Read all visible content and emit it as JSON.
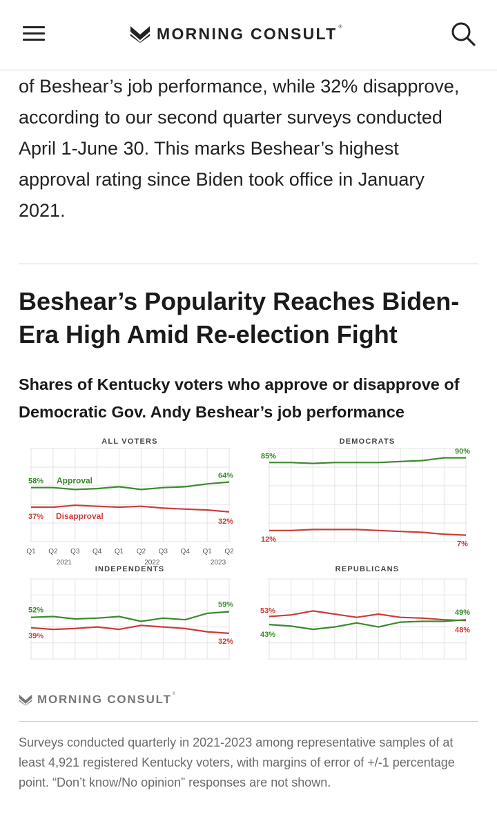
{
  "header": {
    "menu_icon": "hamburger-icon",
    "brand": "MORNING CONSULT",
    "brand_mark": "®",
    "search_icon": "search-icon"
  },
  "article": {
    "intro": "of Beshear’s job performance, while 32% disapprove, according to our second quarter surveys conducted April 1-June 30. This marks Beshear’s highest approval rating since Biden took office in January 2021.",
    "title": "Beshear’s Popularity Reaches Biden-Era High Amid Re-election Fight",
    "subtitle": "Shares of Kentucky voters who approve or disapprove of Democratic Gov. Andy Beshear’s job performance"
  },
  "colors": {
    "approval": "#3b8a2e",
    "disapproval": "#cc3b3b",
    "grid": "#e3e3e3",
    "axis": "#555555"
  },
  "chart_data": [
    {
      "type": "line",
      "title": "ALL VOTERS",
      "x": [
        "Q1",
        "Q2",
        "Q3",
        "Q4",
        "Q1",
        "Q2",
        "Q3",
        "Q4",
        "Q1",
        "Q2"
      ],
      "year_labels": [
        "2021",
        "2022",
        "2023"
      ],
      "ylim": [
        0,
        100
      ],
      "series": [
        {
          "name": "Approval",
          "role": "approval",
          "values": [
            58,
            58,
            56,
            57,
            59,
            56,
            58,
            59,
            62,
            64
          ],
          "start_label": "58%",
          "end_label": "64%"
        },
        {
          "name": "Disapproval",
          "role": "disapproval",
          "values": [
            37,
            37,
            39,
            38,
            37,
            38,
            36,
            35,
            34,
            32
          ],
          "start_label": "37%",
          "end_label": "32%"
        }
      ]
    },
    {
      "type": "line",
      "title": "DEMOCRATS",
      "x": [
        "Q1",
        "Q2",
        "Q3",
        "Q4",
        "Q1",
        "Q2",
        "Q3",
        "Q4",
        "Q1",
        "Q2"
      ],
      "ylim": [
        0,
        100
      ],
      "series": [
        {
          "role": "approval",
          "values": [
            85,
            85,
            84,
            85,
            85,
            85,
            86,
            87,
            90,
            90
          ],
          "start_label": "85%",
          "end_label": "90%"
        },
        {
          "role": "disapproval",
          "values": [
            12,
            12,
            13,
            13,
            13,
            12,
            11,
            10,
            8,
            7
          ],
          "start_label": "12%",
          "end_label": "7%"
        }
      ]
    },
    {
      "type": "line",
      "title": "INDEPENDENTS",
      "x": [
        "Q1",
        "Q2",
        "Q3",
        "Q4",
        "Q1",
        "Q2",
        "Q3",
        "Q4",
        "Q1",
        "Q2"
      ],
      "ylim": [
        0,
        100
      ],
      "series": [
        {
          "role": "approval",
          "values": [
            52,
            53,
            50,
            51,
            53,
            47,
            51,
            49,
            57,
            59
          ],
          "start_label": "52%",
          "end_label": "59%"
        },
        {
          "role": "disapproval",
          "values": [
            39,
            37,
            38,
            40,
            37,
            42,
            40,
            38,
            34,
            32
          ],
          "start_label": "39%",
          "end_label": "32%"
        }
      ]
    },
    {
      "type": "line",
      "title": "REPUBLICANS",
      "x": [
        "Q1",
        "Q2",
        "Q3",
        "Q4",
        "Q1",
        "Q2",
        "Q3",
        "Q4",
        "Q1",
        "Q2"
      ],
      "ylim": [
        0,
        100
      ],
      "series": [
        {
          "role": "disapproval",
          "values": [
            53,
            55,
            60,
            56,
            52,
            56,
            52,
            51,
            49,
            48
          ],
          "start_label": "53%",
          "end_label": "48%"
        },
        {
          "role": "approval",
          "values": [
            43,
            41,
            37,
            40,
            45,
            40,
            46,
            47,
            47,
            49
          ],
          "start_label": "43%",
          "end_label": "49%"
        }
      ]
    }
  ],
  "footer": {
    "brand": "MORNING CONSULT",
    "brand_mark": "®",
    "note": "Surveys conducted quarterly in 2021-2023 among representative samples of at least 4,921 registered Kentucky voters, with margins of error of +/-1 percentage point. “Don’t know/No opinion” responses are not shown."
  }
}
